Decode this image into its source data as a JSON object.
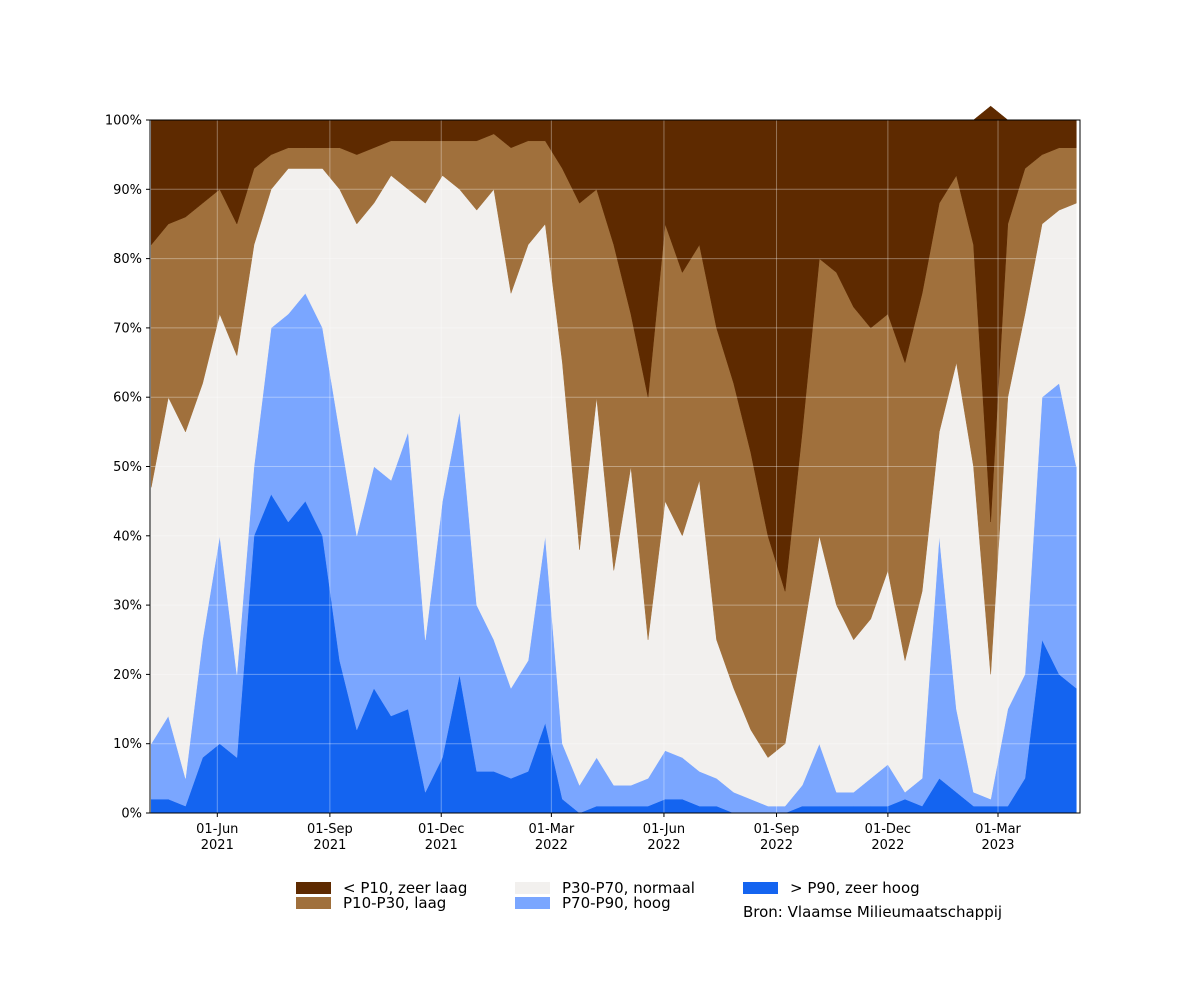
{
  "chart_data": {
    "type": "stacked-area",
    "x": [
      "2021-04-08",
      "2021-04-22",
      "2021-05-06",
      "2021-05-20",
      "2021-06-03",
      "2021-06-17",
      "2021-07-01",
      "2021-07-15",
      "2021-07-29",
      "2021-08-12",
      "2021-08-26",
      "2021-09-09",
      "2021-09-23",
      "2021-10-07",
      "2021-10-21",
      "2021-11-04",
      "2021-11-18",
      "2021-12-02",
      "2021-12-16",
      "2021-12-30",
      "2022-01-13",
      "2022-01-27",
      "2022-02-10",
      "2022-02-24",
      "2022-03-10",
      "2022-03-24",
      "2022-04-07",
      "2022-04-21",
      "2022-05-05",
      "2022-05-19",
      "2022-06-02",
      "2022-06-16",
      "2022-06-30",
      "2022-07-14",
      "2022-07-28",
      "2022-08-11",
      "2022-08-25",
      "2022-09-08",
      "2022-09-22",
      "2022-10-06",
      "2022-10-20",
      "2022-11-03",
      "2022-11-17",
      "2022-12-01",
      "2022-12-15",
      "2022-12-29",
      "2023-01-12",
      "2023-01-26",
      "2023-02-09",
      "2023-02-23",
      "2023-03-09",
      "2023-03-23",
      "2023-04-06",
      "2023-04-20",
      "2023-05-04"
    ],
    "series": [
      {
        "name": "< P10, zeer laag",
        "color": "#5e2a00",
        "values": [
          18,
          15,
          14,
          12,
          10,
          15,
          7,
          5,
          4,
          4,
          4,
          4,
          5,
          4,
          3,
          3,
          3,
          3,
          3,
          3,
          2,
          4,
          3,
          3,
          7,
          12,
          10,
          18,
          28,
          40,
          15,
          22,
          18,
          30,
          38,
          48,
          60,
          68,
          45,
          20,
          22,
          27,
          30,
          28,
          35,
          25,
          12,
          8,
          18,
          60,
          15,
          7,
          5,
          4,
          4
        ]
      },
      {
        "name": "P10-P30, laag",
        "color": "#a0703c",
        "values": [
          35,
          25,
          31,
          26,
          18,
          19,
          11,
          5,
          3,
          3,
          3,
          6,
          10,
          8,
          5,
          7,
          9,
          5,
          7,
          10,
          8,
          21,
          15,
          12,
          28,
          50,
          30,
          47,
          22,
          35,
          40,
          38,
          34,
          45,
          44,
          40,
          32,
          22,
          30,
          40,
          48,
          48,
          42,
          37,
          43,
          43,
          33,
          27,
          32,
          22,
          25,
          21,
          10,
          9,
          8
        ]
      },
      {
        "name": "P30-P70, normaal",
        "color": "#f2f0ee",
        "values": [
          37,
          46,
          50,
          37,
          32,
          46,
          32,
          20,
          21,
          18,
          23,
          35,
          45,
          38,
          44,
          35,
          63,
          47,
          32,
          57,
          65,
          57,
          60,
          45,
          55,
          34,
          52,
          31,
          46,
          20,
          36,
          32,
          42,
          20,
          15,
          10,
          7,
          9,
          21,
          30,
          27,
          22,
          23,
          28,
          19,
          27,
          15,
          50,
          47,
          18,
          45,
          52,
          25,
          25,
          38
        ]
      },
      {
        "name": "P70-P90, hoog",
        "color": "#7aa6ff",
        "values": [
          8,
          12,
          4,
          17,
          30,
          12,
          10,
          24,
          30,
          30,
          30,
          33,
          28,
          32,
          34,
          40,
          22,
          37,
          38,
          24,
          19,
          13,
          16,
          27,
          8,
          4,
          7,
          3,
          3,
          4,
          7,
          6,
          5,
          4,
          3,
          2,
          1,
          1,
          3,
          9,
          2,
          2,
          4,
          6,
          1,
          4,
          35,
          12,
          2,
          1,
          14,
          15,
          35,
          42,
          32
        ]
      },
      {
        "name": "> P90, zeer hoog",
        "color": "#1464f0",
        "values": [
          2,
          2,
          1,
          8,
          10,
          8,
          40,
          46,
          42,
          45,
          40,
          22,
          12,
          18,
          14,
          15,
          3,
          8,
          20,
          6,
          6,
          5,
          6,
          13,
          2,
          0,
          1,
          1,
          1,
          1,
          2,
          2,
          1,
          1,
          0,
          0,
          0,
          0,
          1,
          1,
          1,
          1,
          1,
          1,
          2,
          1,
          5,
          3,
          1,
          1,
          1,
          5,
          25,
          20,
          18
        ]
      }
    ],
    "xlim": [
      "2021-04-07",
      "2023-05-07"
    ],
    "xticks": [
      {
        "value": "2021-06-01",
        "label": [
          "01-Jun",
          "2021"
        ]
      },
      {
        "value": "2021-09-01",
        "label": [
          "01-Sep",
          "2021"
        ]
      },
      {
        "value": "2021-12-01",
        "label": [
          "01-Dec",
          "2021"
        ]
      },
      {
        "value": "2022-03-01",
        "label": [
          "01-Mar",
          "2022"
        ]
      },
      {
        "value": "2022-06-01",
        "label": [
          "01-Jun",
          "2022"
        ]
      },
      {
        "value": "2022-09-01",
        "label": [
          "01-Sep",
          "2022"
        ]
      },
      {
        "value": "2022-12-01",
        "label": [
          "01-Dec",
          "2022"
        ]
      },
      {
        "value": "2023-03-01",
        "label": [
          "01-Mar",
          "2023"
        ]
      }
    ],
    "ylim": [
      0,
      100
    ],
    "yticks": [
      {
        "value": 0,
        "label": "0%"
      },
      {
        "value": 10,
        "label": "10%"
      },
      {
        "value": 20,
        "label": "20%"
      },
      {
        "value": 30,
        "label": "30%"
      },
      {
        "value": 40,
        "label": "40%"
      },
      {
        "value": 50,
        "label": "50%"
      },
      {
        "value": 60,
        "label": "60%"
      },
      {
        "value": 70,
        "label": "70%"
      },
      {
        "value": 80,
        "label": "80%"
      },
      {
        "value": 90,
        "label": "90%"
      },
      {
        "value": 100,
        "label": "100%"
      }
    ],
    "grid": true,
    "source": "Bron: Vlaamse Milieumaatschappij"
  }
}
